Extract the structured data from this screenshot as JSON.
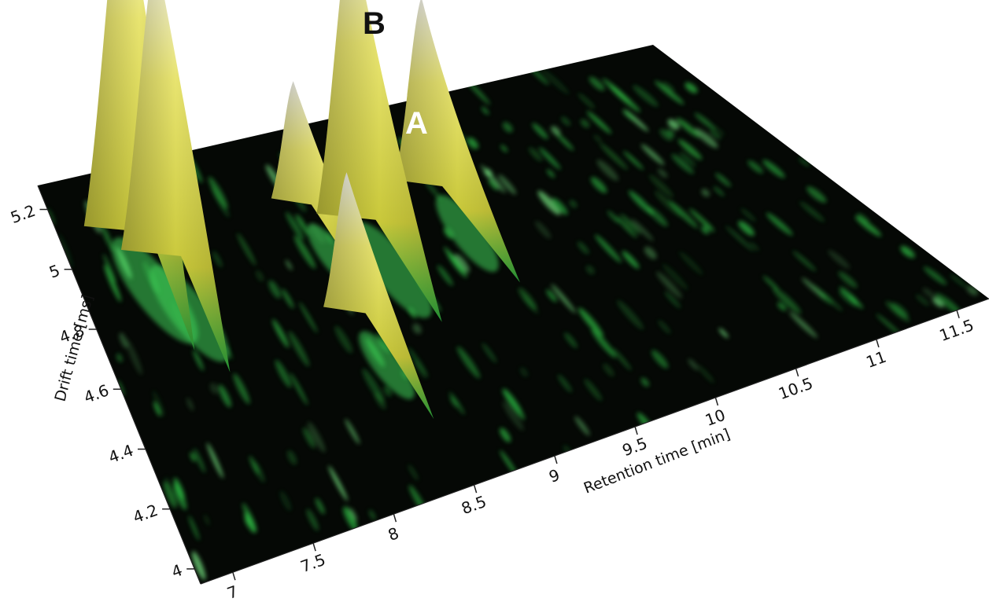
{
  "chart_data": {
    "type": "surface-3d",
    "xlabel": "Retention time [min]",
    "ylabel": "Drift time [ms]",
    "xlim": [
      6.8,
      11.7
    ],
    "ylim": [
      3.95,
      5.28
    ],
    "x_ticks": [
      "7",
      "7.5",
      "8",
      "8.5",
      "9",
      "9.5",
      "10",
      "10.5",
      "11",
      "11.5"
    ],
    "y_ticks": [
      "4",
      "4.2",
      "4.4",
      "4.6",
      "4.8",
      "5",
      "5.2"
    ],
    "colors": {
      "background": "#050805",
      "low": "#1f8a2e",
      "mid": "#3cd95a",
      "high": "#e8e470",
      "top": "#f2f2ea"
    },
    "annotations": [
      {
        "text": "B",
        "color": "#111111"
      },
      {
        "text": "A",
        "color": "#ffffff"
      }
    ],
    "peaks": [
      {
        "name": "B",
        "x": 7.3,
        "y": 5.1,
        "height": 1.0
      },
      {
        "name": "A",
        "x": 7.45,
        "y": 5.0,
        "height": 0.85
      },
      {
        "name": "",
        "x": 8.45,
        "y": 4.65,
        "height": 0.38
      },
      {
        "name": "",
        "x": 8.55,
        "y": 5.05,
        "height": 0.33
      },
      {
        "name": "",
        "x": 8.85,
        "y": 4.95,
        "height": 0.83
      },
      {
        "name": "",
        "x": 9.45,
        "y": 5.0,
        "height": 0.52
      }
    ]
  }
}
